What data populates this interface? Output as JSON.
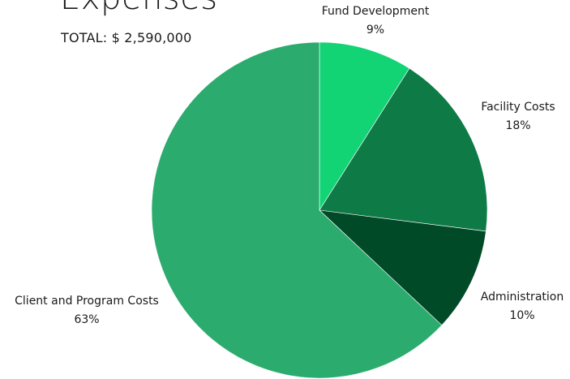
{
  "header": {
    "title": "Expenses",
    "subtitle": "TOTAL: $ 2,590,000"
  },
  "chart_data": {
    "type": "pie",
    "title": "Expenses",
    "subtitle": "TOTAL: $ 2,590,000",
    "start_angle_deg": 0,
    "direction": "clockwise",
    "slices": [
      {
        "label": "Fund Development",
        "value": 9,
        "percent_label": "9%",
        "color": "#12d475"
      },
      {
        "label": "Facility Costs",
        "value": 18,
        "percent_label": "18%",
        "color": "#0e7b47"
      },
      {
        "label": "Administration",
        "value": 10,
        "percent_label": "10%",
        "color": "#014a27"
      },
      {
        "label": "Client and Program Costs",
        "value": 63,
        "percent_label": "63%",
        "color": "#2bac6e"
      }
    ],
    "legend": "none"
  }
}
